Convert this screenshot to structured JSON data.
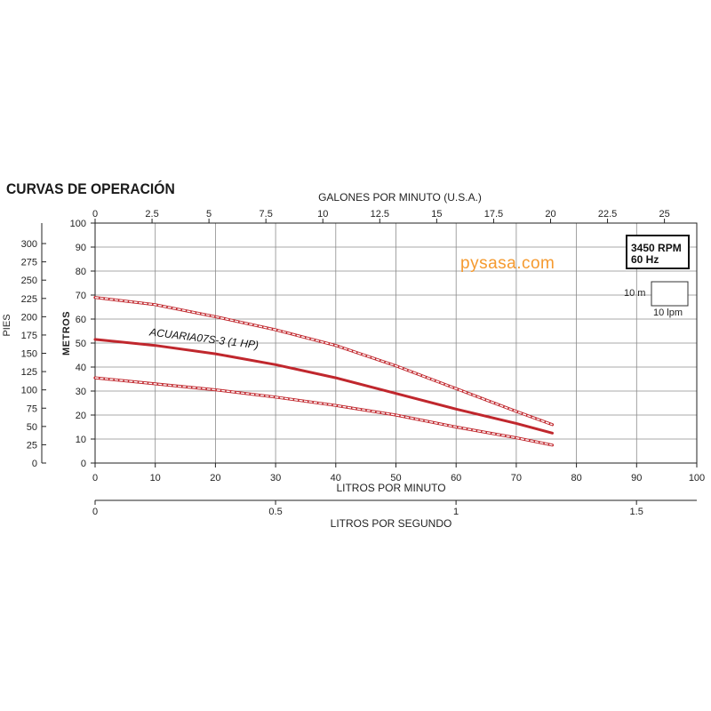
{
  "title": "CURVAS DE OPERACIÓN",
  "watermark": "pysasa.com",
  "colors": {
    "curve": "#c0272d",
    "band": "#c0272d",
    "grid": "#8c8c8c",
    "axis": "#222222",
    "watermark": "#f59a2f"
  },
  "chart_data": {
    "type": "line",
    "title": "CURVAS DE OPERACIÓN",
    "grid": true,
    "axes": {
      "x_bottom": {
        "label": "LITROS POR MINUTO",
        "range": [
          0,
          100
        ],
        "ticks": [
          "0",
          "10",
          "20",
          "30",
          "40",
          "50",
          "60",
          "70",
          "80",
          "90",
          "100"
        ]
      },
      "x_top": {
        "label": "GALONES POR MINUTO (U.S.A.)",
        "range": [
          0,
          26.42
        ],
        "ticks": [
          "0",
          "2.5",
          "5",
          "7.5",
          "10",
          "12.5",
          "15",
          "17.5",
          "20",
          "22.5",
          "25"
        ],
        "tick_values": [
          0,
          2.5,
          5,
          7.5,
          10,
          12.5,
          15,
          17.5,
          20,
          22.5,
          25
        ]
      },
      "x_lps": {
        "label": "LITROS POR SEGUNDO",
        "range": [
          0,
          1.667
        ],
        "ticks": [
          "0",
          "0.5",
          "1",
          "1.5"
        ],
        "tick_values": [
          0,
          0.5,
          1,
          1.5
        ]
      },
      "y_left": {
        "label": "METROS",
        "range": [
          0,
          100
        ],
        "ticks": [
          "0",
          "10",
          "20",
          "30",
          "40",
          "50",
          "60",
          "70",
          "80",
          "90",
          "100"
        ]
      },
      "y_feet": {
        "label": "PIES",
        "range": [
          0,
          328
        ],
        "ticks": [
          "0",
          "25",
          "50",
          "75",
          "100",
          "125",
          "150",
          "175",
          "200",
          "225",
          "250",
          "275",
          "300"
        ],
        "tick_values": [
          0,
          25,
          50,
          75,
          100,
          125,
          150,
          175,
          200,
          225,
          250,
          275,
          300
        ]
      }
    },
    "series": [
      {
        "name": "ACUARIA07S-3 (1 HP)",
        "role": "curve",
        "x": [
          0,
          10,
          20,
          30,
          40,
          50,
          60,
          70,
          76
        ],
        "y": [
          51.5,
          49,
          45.5,
          41,
          35.5,
          29,
          22.5,
          16.5,
          12.5
        ]
      },
      {
        "role": "upper-limit",
        "x": [
          0,
          10,
          20,
          30,
          40,
          50,
          60,
          70,
          76
        ],
        "y": [
          69,
          66,
          61,
          55.5,
          49,
          40.5,
          31,
          21.5,
          16
        ]
      },
      {
        "role": "lower-limit",
        "x": [
          0,
          10,
          20,
          30,
          40,
          50,
          60,
          70,
          76
        ],
        "y": [
          35.5,
          33,
          30.5,
          27.5,
          24,
          20,
          15,
          10.5,
          7.5
        ]
      }
    ],
    "annotations": {
      "rating_box": [
        "3450 RPM",
        "60 Hz"
      ],
      "scale_key": {
        "vertical": "10 m",
        "horizontal": "10 lpm"
      }
    }
  }
}
